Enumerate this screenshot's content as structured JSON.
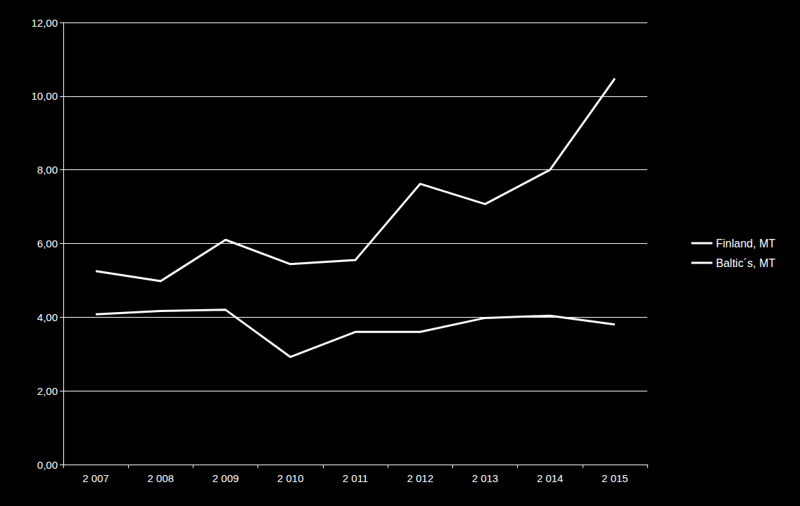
{
  "chart_data": {
    "type": "line",
    "categories": [
      "2 007",
      "2 008",
      "2 009",
      "2 010",
      "2 011",
      "2 012",
      "2 013",
      "2 014",
      "2 015"
    ],
    "series": [
      {
        "name": "Finland, MT",
        "color": "#ffffff",
        "values": [
          5.25,
          4.98,
          6.1,
          5.44,
          5.55,
          7.62,
          7.07,
          8.0,
          10.48
        ]
      },
      {
        "name": "Baltic´s, MT",
        "color": "#ffffff",
        "values": [
          4.08,
          4.17,
          4.2,
          2.92,
          3.6,
          3.6,
          3.98,
          4.04,
          3.8
        ]
      }
    ],
    "ylim": [
      0,
      12
    ],
    "yticks": [
      {
        "value": 0,
        "label": "0,00"
      },
      {
        "value": 2,
        "label": "2,00"
      },
      {
        "value": 4,
        "label": "4,00"
      },
      {
        "value": 6,
        "label": "6,00"
      },
      {
        "value": 8,
        "label": "8,00"
      },
      {
        "value": 10,
        "label": "10,00"
      },
      {
        "value": 12,
        "label": "12,00"
      }
    ],
    "grid": true,
    "legend": "right",
    "marker": "none",
    "line_style": "solid"
  }
}
